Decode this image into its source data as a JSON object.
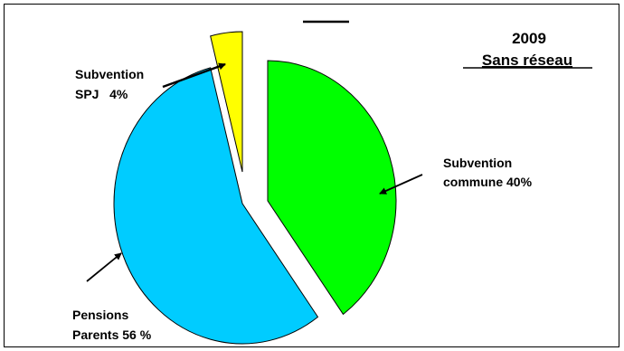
{
  "chart_data": {
    "type": "pie",
    "title": "2009",
    "subtitle": "Sans réseau",
    "slices": [
      {
        "label_line1": "Subvention",
        "label_line2": "commune 40%",
        "value": 40,
        "color": "#00ff00"
      },
      {
        "label_line1": "Pensions",
        "label_line2": "Parents 56 %",
        "value": 56,
        "color": "#00ccff"
      },
      {
        "label_line1": "Subvention",
        "label_line2": "SPJ   4%",
        "value": 4,
        "color": "#ffff00"
      }
    ],
    "exploded": true,
    "legend": "none"
  }
}
